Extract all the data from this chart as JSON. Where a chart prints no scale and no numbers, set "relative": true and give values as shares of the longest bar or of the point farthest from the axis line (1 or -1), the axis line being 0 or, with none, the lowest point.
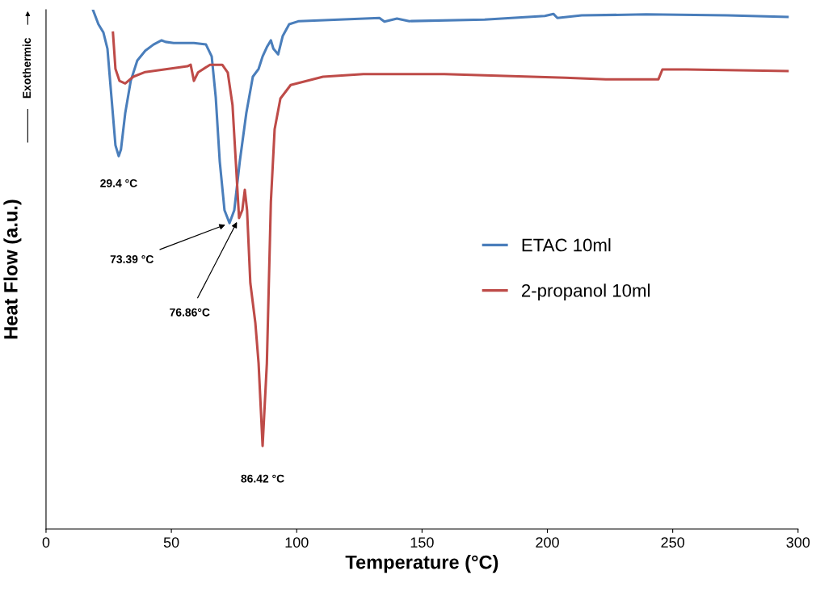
{
  "chart_data": {
    "type": "line",
    "relative": true,
    "xlabel": "Temperature (°C)",
    "ylabel": "Heat Flow (a.u.)",
    "xlim": [
      0,
      300
    ],
    "xticks": [
      0,
      50,
      100,
      150,
      200,
      250,
      300
    ],
    "tick_labels": "x",
    "grid": false,
    "legend": "right",
    "marker": "none",
    "line_style": "solid",
    "series": [
      {
        "name": "ETAC 10ml",
        "color": "#4a7ebb",
        "x": [
          18.7,
          20.9,
          22.9,
          24.5,
          26.1,
          27.7,
          29.0,
          29.9,
          31.6,
          33.8,
          36.4,
          39.6,
          42.9,
          46.1,
          47.7,
          50.9,
          59.0,
          63.8,
          66.1,
          67.7,
          69.3,
          71.2,
          73.2,
          75.1,
          77.3,
          79.9,
          82.5,
          84.8,
          86.4,
          88.1,
          89.7,
          90.7,
          92.6,
          94.4,
          97.0,
          100.9,
          117,
          133,
          135,
          140,
          144.9,
          175,
          199,
          202.4,
          204,
          213.7,
          239.4,
          271.7,
          295.8
        ],
        "values": [
          1.0,
          0.972,
          0.956,
          0.925,
          0.832,
          0.739,
          0.718,
          0.731,
          0.801,
          0.863,
          0.902,
          0.921,
          0.933,
          0.941,
          0.938,
          0.936,
          0.936,
          0.933,
          0.91,
          0.832,
          0.708,
          0.614,
          0.589,
          0.614,
          0.708,
          0.801,
          0.871,
          0.886,
          0.91,
          0.928,
          0.941,
          0.925,
          0.914,
          0.949,
          0.972,
          0.978,
          0.981,
          0.984,
          0.977,
          0.983,
          0.978,
          0.981,
          0.988,
          0.992,
          0.984,
          0.989,
          0.991,
          0.989,
          0.986
        ]
      },
      {
        "name": "2-propanol 10ml",
        "color": "#be4b48",
        "x": [
          26.7,
          27.7,
          29.3,
          31.6,
          34.8,
          39.6,
          56.4,
          57.7,
          59.0,
          60.6,
          65.4,
          70.3,
          72.5,
          74.4,
          75.7,
          77.0,
          78.3,
          79.3,
          80.2,
          81.5,
          83.5,
          84.8,
          86.4,
          88.1,
          89.7,
          91.2,
          93.5,
          97.6,
          110.5,
          126.6,
          158.9,
          207.2,
          223.3,
          244.3,
          245.9,
          255.6,
          295.8
        ],
        "values": [
          0.956,
          0.886,
          0.863,
          0.858,
          0.871,
          0.88,
          0.891,
          0.894,
          0.863,
          0.879,
          0.894,
          0.894,
          0.879,
          0.816,
          0.708,
          0.599,
          0.614,
          0.653,
          0.614,
          0.474,
          0.397,
          0.319,
          0.16,
          0.319,
          0.63,
          0.77,
          0.829,
          0.855,
          0.871,
          0.876,
          0.876,
          0.869,
          0.866,
          0.866,
          0.885,
          0.885,
          0.882
        ]
      }
    ],
    "annotations": [
      {
        "text": "29.4 °C",
        "x": 29.0,
        "y": 0.718
      },
      {
        "text": "73.39 °C",
        "x": 73.2,
        "y": 0.589
      },
      {
        "text": "76.86°C",
        "x": 77.0,
        "y": 0.599
      },
      {
        "text": "86.42 °C",
        "x": 86.4,
        "y": 0.16
      },
      "Exothermic"
    ]
  }
}
